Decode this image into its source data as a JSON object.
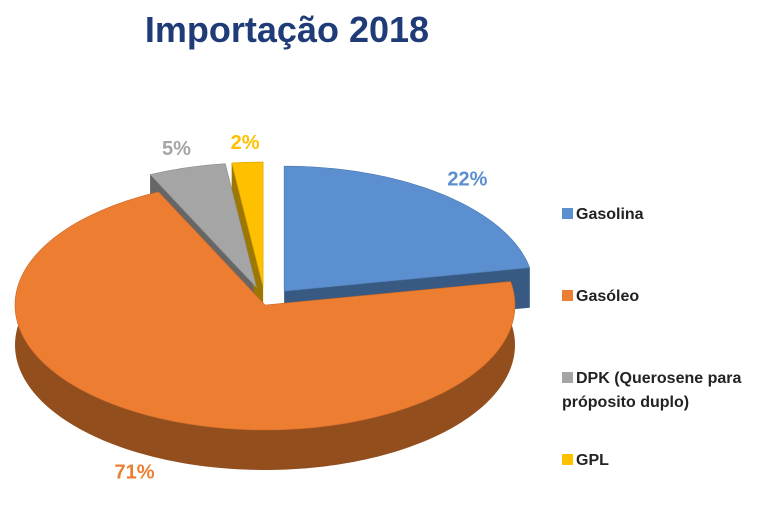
{
  "chart_data": {
    "type": "pie3d",
    "title": "Importação 2018",
    "categories": [
      "Gasolina",
      "Gasóleo",
      "DPK (Querosene para próposito duplo)",
      "GPL"
    ],
    "values": [
      22,
      71,
      5,
      2
    ],
    "value_labels": [
      "22%",
      "71%",
      "5%",
      "2%"
    ],
    "colors": [
      "#5b8fd0",
      "#ed7d31",
      "#a5a5a5",
      "#ffc000"
    ],
    "exploded": [
      true,
      false,
      true,
      true
    ],
    "legend": "right"
  }
}
